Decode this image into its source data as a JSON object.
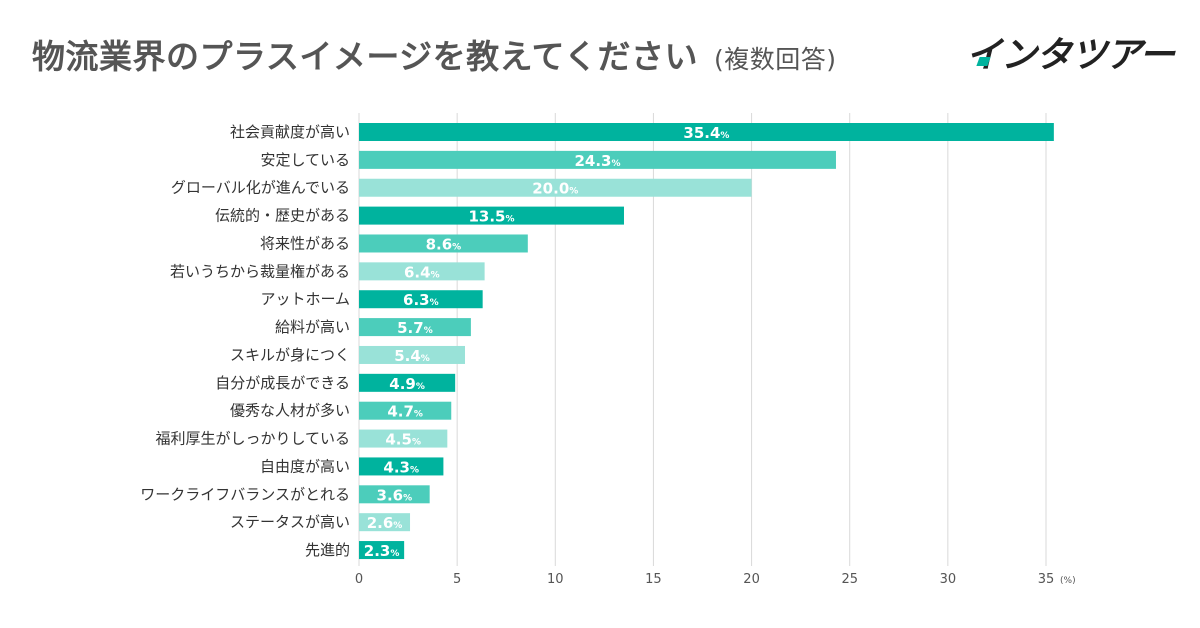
{
  "header": {
    "title": "物流業界のプラスイメージを教えてください",
    "subtitle": "(複数回答)",
    "brand": "インタツアー"
  },
  "colors": {
    "dark": "#00b39e",
    "medium": "#4ccdbb",
    "light": "#99e2d8",
    "grid": "#d9d9d9",
    "text": "#333333"
  },
  "chart_data": {
    "type": "bar",
    "orientation": "horizontal",
    "title": "物流業界のプラスイメージを教えてください (複数回答)",
    "xlabel": "",
    "ylabel": "",
    "unit": "(%)",
    "value_suffix": "%",
    "xlim": [
      0,
      35
    ],
    "xticks": [
      0,
      5,
      10,
      15,
      20,
      25,
      30,
      35
    ],
    "grid": true,
    "categories": [
      "社会貢献度が高い",
      "安定している",
      "グローバル化が進んでいる",
      "伝統的・歴史がある",
      "将来性がある",
      "若いうちから裁量権がある",
      "アットホーム",
      "給料が高い",
      "スキルが身につく",
      "自分が成長ができる",
      "優秀な人材が多い",
      "福利厚生がしっかりしている",
      "自由度が高い",
      "ワークライフバランスがとれる",
      "ステータスが高い",
      "先進的"
    ],
    "values": [
      35.4,
      24.3,
      20.0,
      13.5,
      8.6,
      6.4,
      6.3,
      5.7,
      5.4,
      4.9,
      4.7,
      4.5,
      4.3,
      3.6,
      2.6,
      2.3
    ],
    "labels": [
      "35.4",
      "24.3",
      "20.0",
      "13.5",
      "8.6",
      "6.4",
      "6.3",
      "5.7",
      "5.4",
      "4.9",
      "4.7",
      "4.5",
      "4.3",
      "3.6",
      "2.6",
      "2.3"
    ],
    "shades": [
      "dark",
      "medium",
      "light",
      "dark",
      "medium",
      "light",
      "dark",
      "medium",
      "light",
      "dark",
      "medium",
      "light",
      "dark",
      "medium",
      "light",
      "dark"
    ]
  }
}
